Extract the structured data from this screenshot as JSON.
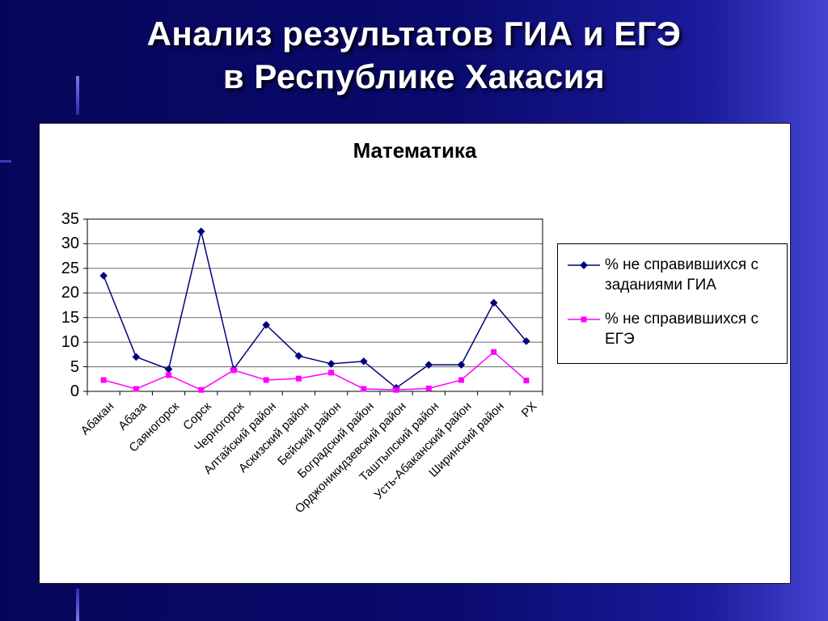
{
  "slide": {
    "title_line1": "Анализ результатов ГИА и ЕГЭ",
    "title_line2": "в Республике Хакасия"
  },
  "chart_data": {
    "type": "line",
    "title": "Математика",
    "categories": [
      "Абакан",
      "Абаза",
      "Саяногорск",
      "Сорск",
      "Черногорск",
      "Алтайский район",
      "Аскизский район",
      "Бейский район",
      "Боградский район",
      "Орджоникидзевский район",
      "Таштыпский район",
      "Усть-Абаканский район",
      "Ширинский район",
      "РХ"
    ],
    "series": [
      {
        "name": "% не справившихся с заданиями ГИА",
        "color": "#000080",
        "marker": "diamond",
        "values": [
          23.5,
          7,
          4.5,
          32.5,
          4.5,
          13.5,
          7.2,
          5.6,
          6.1,
          0.7,
          5.4,
          5.4,
          18,
          10.2
        ]
      },
      {
        "name": "% не справившихся с ЕГЭ",
        "color": "#ff00ff",
        "marker": "square",
        "values": [
          2.3,
          0.5,
          3.3,
          0.3,
          4.3,
          2.3,
          2.6,
          3.8,
          0.5,
          0.3,
          0.6,
          2.3,
          8,
          2.2
        ]
      }
    ],
    "ylim": [
      0,
      35
    ],
    "yticks": [
      0,
      5,
      10,
      15,
      20,
      25,
      30,
      35
    ],
    "grid": true,
    "legend_position": "right"
  }
}
